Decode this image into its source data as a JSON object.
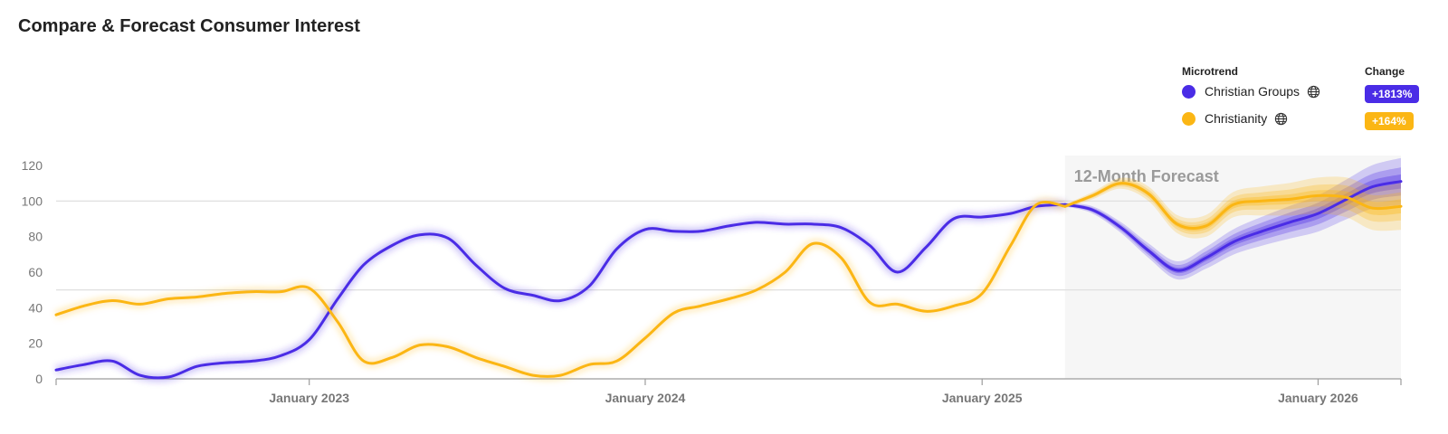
{
  "title": "Compare & Forecast Consumer Interest",
  "legend": {
    "microtrend_header": "Microtrend",
    "change_header": "Change",
    "items": [
      {
        "name": "Christian Groups",
        "change": "+1813%",
        "color": "#4a2ce6",
        "icon": "globe-icon"
      },
      {
        "name": "Christianity",
        "change": "+164%",
        "color": "#fbb614",
        "icon": "globe-icon"
      }
    ]
  },
  "chart_data": {
    "type": "line",
    "title": "Compare & Forecast Consumer Interest",
    "xlabel": "",
    "ylabel": "",
    "ylim": [
      0,
      120
    ],
    "y_ticks": [
      "0",
      "20",
      "40",
      "60",
      "80",
      "100",
      "120"
    ],
    "x_range": [
      "2022-04-01",
      "2026-04-01"
    ],
    "x_ticks": [
      {
        "date": "2023-01-01",
        "label": "January 2023"
      },
      {
        "date": "2024-01-01",
        "label": "January 2024"
      },
      {
        "date": "2025-01-01",
        "label": "January 2025"
      },
      {
        "date": "2026-01-01",
        "label": "January 2026"
      }
    ],
    "forecast": {
      "label": "12-Month Forecast",
      "start": "2025-04-01",
      "end": "2026-04-01"
    },
    "reference_lines": [
      100,
      50
    ],
    "grid": false,
    "legend_position": "top-right",
    "series": [
      {
        "name": "Christian Groups",
        "color": "#4a2ce6",
        "points": [
          [
            "2022-04-01",
            5
          ],
          [
            "2022-05-01",
            8
          ],
          [
            "2022-06-01",
            10
          ],
          [
            "2022-07-01",
            2
          ],
          [
            "2022-08-01",
            1
          ],
          [
            "2022-09-01",
            7
          ],
          [
            "2022-10-01",
            9
          ],
          [
            "2022-11-01",
            10
          ],
          [
            "2022-12-01",
            13
          ],
          [
            "2023-01-01",
            22
          ],
          [
            "2023-02-01",
            45
          ],
          [
            "2023-03-01",
            64
          ],
          [
            "2023-04-01",
            75
          ],
          [
            "2023-05-01",
            81
          ],
          [
            "2023-06-01",
            79
          ],
          [
            "2023-07-01",
            64
          ],
          [
            "2023-08-01",
            51
          ],
          [
            "2023-09-01",
            47
          ],
          [
            "2023-10-01",
            44
          ],
          [
            "2023-11-01",
            52
          ],
          [
            "2023-12-01",
            73
          ],
          [
            "2024-01-01",
            84
          ],
          [
            "2024-02-01",
            83
          ],
          [
            "2024-03-01",
            83
          ],
          [
            "2024-04-01",
            86
          ],
          [
            "2024-05-01",
            88
          ],
          [
            "2024-06-01",
            87
          ],
          [
            "2024-07-01",
            87
          ],
          [
            "2024-08-01",
            85
          ],
          [
            "2024-09-01",
            75
          ],
          [
            "2024-10-01",
            60
          ],
          [
            "2024-11-01",
            74
          ],
          [
            "2024-12-01",
            90
          ],
          [
            "2025-01-01",
            91
          ],
          [
            "2025-02-01",
            93
          ],
          [
            "2025-03-01",
            97
          ],
          [
            "2025-04-01",
            98
          ]
        ],
        "forecast_points": [
          [
            "2025-04-01",
            98
          ],
          [
            "2025-05-01",
            95
          ],
          [
            "2025-06-01",
            85
          ],
          [
            "2025-07-01",
            72
          ],
          [
            "2025-08-01",
            61
          ],
          [
            "2025-09-01",
            68
          ],
          [
            "2025-10-01",
            77
          ],
          [
            "2025-11-01",
            83
          ],
          [
            "2025-12-01",
            88
          ],
          [
            "2026-01-01",
            93
          ],
          [
            "2026-02-01",
            101
          ],
          [
            "2026-03-01",
            108
          ],
          [
            "2026-04-01",
            111
          ]
        ]
      },
      {
        "name": "Christianity",
        "color": "#fbb614",
        "points": [
          [
            "2022-04-01",
            36
          ],
          [
            "2022-05-01",
            41
          ],
          [
            "2022-06-01",
            44
          ],
          [
            "2022-07-01",
            42
          ],
          [
            "2022-08-01",
            45
          ],
          [
            "2022-09-01",
            46
          ],
          [
            "2022-10-01",
            48
          ],
          [
            "2022-11-01",
            49
          ],
          [
            "2022-12-01",
            49
          ],
          [
            "2023-01-01",
            51
          ],
          [
            "2023-02-01",
            32
          ],
          [
            "2023-03-01",
            10
          ],
          [
            "2023-04-01",
            12
          ],
          [
            "2023-05-01",
            19
          ],
          [
            "2023-06-01",
            18
          ],
          [
            "2023-07-01",
            12
          ],
          [
            "2023-08-01",
            7
          ],
          [
            "2023-09-01",
            2
          ],
          [
            "2023-10-01",
            2
          ],
          [
            "2023-11-01",
            8
          ],
          [
            "2023-12-01",
            10
          ],
          [
            "2024-01-01",
            23
          ],
          [
            "2024-02-01",
            37
          ],
          [
            "2024-03-01",
            41
          ],
          [
            "2024-04-01",
            45
          ],
          [
            "2024-05-01",
            50
          ],
          [
            "2024-06-01",
            60
          ],
          [
            "2024-07-01",
            76
          ],
          [
            "2024-08-01",
            68
          ],
          [
            "2024-09-01",
            43
          ],
          [
            "2024-10-01",
            42
          ],
          [
            "2024-11-01",
            38
          ],
          [
            "2024-12-01",
            41
          ],
          [
            "2025-01-01",
            48
          ],
          [
            "2025-02-01",
            75
          ],
          [
            "2025-03-01",
            98
          ],
          [
            "2025-04-01",
            97
          ]
        ],
        "forecast_points": [
          [
            "2025-04-01",
            97
          ],
          [
            "2025-05-01",
            103
          ],
          [
            "2025-06-01",
            110
          ],
          [
            "2025-07-01",
            104
          ],
          [
            "2025-08-01",
            87
          ],
          [
            "2025-09-01",
            86
          ],
          [
            "2025-10-01",
            98
          ],
          [
            "2025-11-01",
            100
          ],
          [
            "2025-12-01",
            101
          ],
          [
            "2026-01-01",
            103
          ],
          [
            "2026-02-01",
            102
          ],
          [
            "2026-03-01",
            96
          ],
          [
            "2026-04-01",
            97
          ]
        ]
      }
    ]
  }
}
